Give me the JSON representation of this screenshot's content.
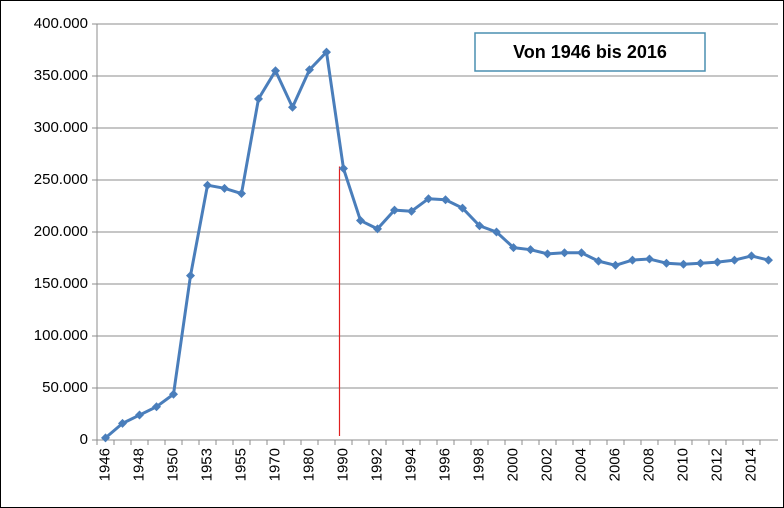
{
  "chart_data": {
    "type": "line",
    "annotation": "Von 1946 bis 2016",
    "categories": [
      "1946",
      null,
      "1948",
      null,
      "1950",
      null,
      "1953",
      null,
      "1955",
      null,
      "1970",
      null,
      "1980",
      null,
      "1990",
      null,
      "1992",
      null,
      "1994",
      null,
      "1996",
      null,
      "1998",
      null,
      "2000",
      null,
      "2002",
      null,
      "2004",
      null,
      "2006",
      null,
      "2008",
      null,
      "2010",
      null,
      "2012",
      null,
      "2014",
      null
    ],
    "series": [
      {
        "color": "#4a7ebb",
        "values": [
          2000,
          16000,
          24000,
          32000,
          44000,
          158000,
          245000,
          242000,
          237000,
          328000,
          355000,
          320000,
          356000,
          373000,
          261000,
          211000,
          203000,
          221000,
          220000,
          232000,
          231000,
          223000,
          206000,
          200000,
          185000,
          183000,
          179000,
          180000,
          180000,
          172000,
          168000,
          173000,
          174000,
          170000,
          169000,
          170000,
          171000,
          173000,
          177000,
          173000
        ]
      }
    ],
    "ylim": [
      0,
      400000
    ],
    "yticks": [
      0,
      {
        "value": 50000,
        "label": "50.000"
      },
      {
        "value": 100000,
        "label": "100.000"
      },
      {
        "value": 150000,
        "label": "150.000"
      },
      {
        "value": 200000,
        "label": "200.000"
      },
      {
        "value": 250000,
        "label": "250.000"
      },
      {
        "value": 300000,
        "label": "300.000"
      },
      {
        "value": 350000,
        "label": "350.000"
      },
      {
        "value": 400000,
        "label": "400.000"
      }
    ],
    "grid": true
  }
}
